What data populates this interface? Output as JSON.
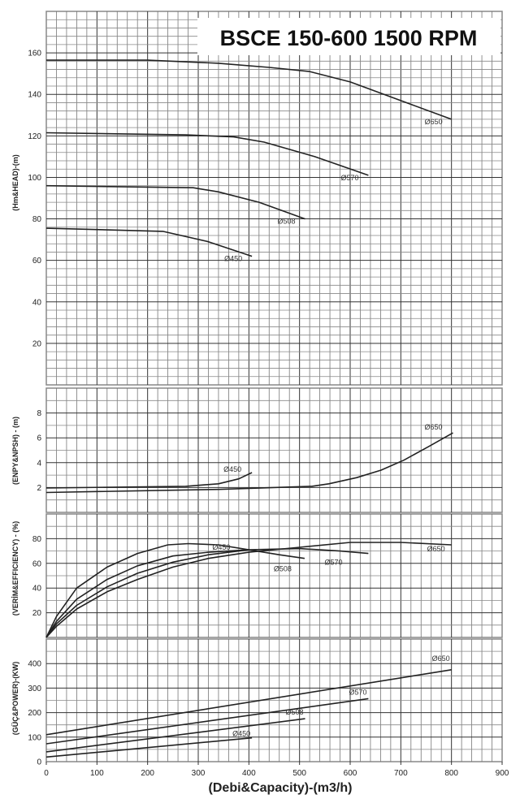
{
  "chart_data": {
    "title": "BSCE 150-600 1500 RPM",
    "xlabel": "(Debi&Capacity)-(m3/h)",
    "xlim": [
      0,
      900
    ],
    "xticks": [
      0,
      100,
      200,
      300,
      400,
      500,
      600,
      700,
      800,
      900
    ],
    "grid": true,
    "panels": [
      {
        "id": "head",
        "type": "line",
        "ylabel": "(Hm&HEAD)-(m)",
        "ylim": [
          0,
          180
        ],
        "yticks": [
          20,
          40,
          60,
          80,
          100,
          120,
          140,
          160
        ],
        "grid_step": 4,
        "series": [
          {
            "name": "Ø650",
            "points": [
              [
                0,
                156.5
              ],
              [
                200,
                156.5
              ],
              [
                340,
                155
              ],
              [
                440,
                153
              ],
              [
                520,
                151
              ],
              [
                600,
                146
              ],
              [
                700,
                137
              ],
              [
                800,
                128
              ]
            ]
          },
          {
            "name": "Ø570",
            "points": [
              [
                0,
                121.5
              ],
              [
                275,
                120.5
              ],
              [
                370,
                119.5
              ],
              [
                430,
                117
              ],
              [
                530,
                110
              ],
              [
                636,
                101
              ]
            ]
          },
          {
            "name": "Ø508",
            "points": [
              [
                0,
                96
              ],
              [
                290,
                95
              ],
              [
                340,
                93
              ],
              [
                420,
                88
              ],
              [
                511,
                80
              ]
            ]
          },
          {
            "name": "Ø450",
            "points": [
              [
                0,
                75.5
              ],
              [
                230,
                74
              ],
              [
                320,
                69
              ],
              [
                406,
                62
              ]
            ]
          }
        ]
      },
      {
        "id": "npsh",
        "type": "line",
        "ylabel": "(ENPY&NPSH) - (m)",
        "ylim": [
          0,
          10
        ],
        "yticks": [
          2,
          4,
          6,
          8
        ],
        "grid_step": 1,
        "series": [
          {
            "name": "Ø650",
            "points": [
              [
                0,
                1.6
              ],
              [
                340,
                1.85
              ],
              [
                524,
                2.1
              ],
              [
                558,
                2.3
              ],
              [
                613,
                2.8
              ],
              [
                661,
                3.4
              ],
              [
                706,
                4.2
              ],
              [
                755,
                5.3
              ],
              [
                803,
                6.4
              ]
            ]
          },
          {
            "name": "Ø450",
            "points": [
              [
                0,
                1.96
              ],
              [
                275,
                2.1
              ],
              [
                340,
                2.3
              ],
              [
                380,
                2.7
              ],
              [
                406,
                3.2
              ]
            ]
          }
        ]
      },
      {
        "id": "efficiency",
        "type": "line",
        "ylabel": "(VERİM&EFFICIENCY) - (%)",
        "ylim": [
          0,
          100
        ],
        "yticks": [
          20,
          40,
          60,
          80
        ],
        "grid_step": 10,
        "series": [
          {
            "name": "Ø450",
            "points": [
              [
                0,
                0
              ],
              [
                20,
                17
              ],
              [
                60,
                40
              ],
              [
                120,
                57
              ],
              [
                180,
                68
              ],
              [
                240,
                75
              ],
              [
                280,
                76
              ],
              [
                340,
                75
              ],
              [
                400,
                71
              ]
            ]
          },
          {
            "name": "Ø508",
            "points": [
              [
                0,
                0
              ],
              [
                20,
                13
              ],
              [
                60,
                31
              ],
              [
                120,
                47
              ],
              [
                180,
                58
              ],
              [
                250,
                66
              ],
              [
                320,
                69
              ],
              [
                400,
                71
              ],
              [
                460,
                67
              ],
              [
                510,
                64
              ]
            ]
          },
          {
            "name": "Ø570",
            "points": [
              [
                0,
                0
              ],
              [
                20,
                11
              ],
              [
                60,
                26
              ],
              [
                120,
                41
              ],
              [
                180,
                52
              ],
              [
                250,
                61
              ],
              [
                320,
                67
              ],
              [
                400,
                71
              ],
              [
                500,
                72
              ],
              [
                580,
                70
              ],
              [
                636,
                68
              ]
            ]
          },
          {
            "name": "Ø650",
            "points": [
              [
                0,
                0
              ],
              [
                20,
                9
              ],
              [
                60,
                23
              ],
              [
                120,
                37
              ],
              [
                180,
                47
              ],
              [
                250,
                57
              ],
              [
                320,
                64
              ],
              [
                400,
                69
              ],
              [
                500,
                73
              ],
              [
                600,
                77
              ],
              [
                700,
                77
              ],
              [
                800,
                75
              ]
            ]
          }
        ]
      },
      {
        "id": "power",
        "type": "line",
        "ylabel": "(GÜÇ&POWER)-(KW)",
        "ylim": [
          0,
          500
        ],
        "yticks": [
          0,
          100,
          200,
          300,
          400
        ],
        "grid_step": 50,
        "series": [
          {
            "name": "Ø650",
            "points": [
              [
                0,
                110
              ],
              [
                800,
                375
              ]
            ]
          },
          {
            "name": "Ø570",
            "points": [
              [
                0,
                73
              ],
              [
                636,
                257
              ]
            ]
          },
          {
            "name": "Ø508",
            "points": [
              [
                0,
                40
              ],
              [
                511,
                175
              ]
            ]
          },
          {
            "name": "Ø450",
            "points": [
              [
                0,
                19
              ],
              [
                406,
                97
              ]
            ]
          }
        ]
      }
    ]
  }
}
